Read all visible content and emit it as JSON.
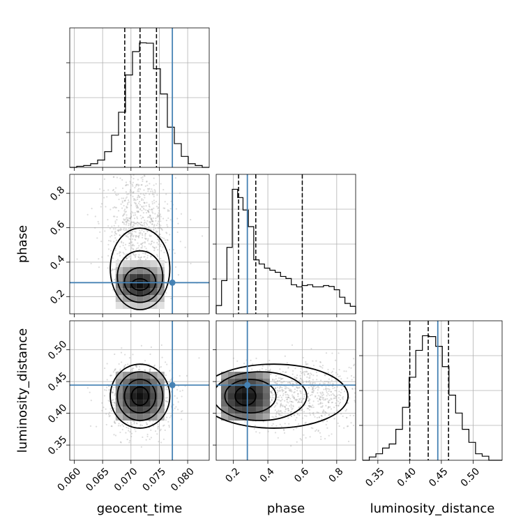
{
  "chart_data": {
    "type": "corner",
    "parameters": [
      "geocent_time",
      "phase",
      "luminosity_distance"
    ],
    "truth_color": "#4682b4",
    "truths": {
      "geocent_time": 0.0773,
      "phase": 0.281,
      "luminosity_distance": 0.4444
    },
    "axes": {
      "geocent_time": {
        "range": [
          0.0592,
          0.0838
        ],
        "ticks": [
          0.06,
          0.065,
          0.07,
          0.075,
          0.08
        ],
        "tick_labels": [
          "0.060",
          "0.065",
          "0.070",
          "0.075",
          "0.080"
        ]
      },
      "phase": {
        "range": [
          0.1,
          0.91
        ],
        "ticks": [
          0.2,
          0.4,
          0.6,
          0.8
        ],
        "tick_labels": [
          "0.2",
          "0.4",
          "0.6",
          "0.8"
        ]
      },
      "luminosity_distance": {
        "range": [
          0.326,
          0.5457
        ],
        "ticks": [
          0.35,
          0.4,
          0.45,
          0.5
        ],
        "tick_labels": [
          "0.35",
          "0.40",
          "0.45",
          "0.50"
        ]
      }
    },
    "histograms": {
      "geocent_time": {
        "quantiles": [
          0.0689,
          0.0716,
          0.0745
        ],
        "counts": [
          0,
          0.3,
          0.5,
          1.0,
          2.0,
          4.3,
          8.8,
          15.1,
          25.3,
          31.7,
          34.1,
          34.0,
          27.0,
          20.1,
          11.0,
          6.5,
          3.0,
          1.0,
          0.5,
          0
        ]
      },
      "phase": {
        "quantiles": [
          0.23,
          0.33,
          0.6
        ],
        "counts": [
          2,
          8,
          16,
          30,
          28,
          25,
          21,
          13,
          12,
          11,
          10.5,
          10,
          9,
          8.5,
          7,
          6.5,
          6.8,
          7,
          6.5,
          6.5,
          6.8,
          6.6,
          5.8,
          4,
          2.5,
          1.8
        ]
      },
      "luminosity_distance": {
        "quantiles": [
          0.4003,
          0.4293,
          0.4613
        ],
        "counts": [
          0,
          0.4,
          0.8,
          1.5,
          2.0,
          3.8,
          6.5,
          10.2,
          13.5,
          15.3,
          15.2,
          14.0,
          11.5,
          8.0,
          5.8,
          3.8,
          2.2,
          0.8,
          0.5,
          0,
          0
        ]
      }
    },
    "pairs": [
      {
        "x": "geocent_time",
        "y": "phase",
        "peak": [
          0.0716,
          0.27
        ],
        "sigma": [
          0.0025,
          0.055
        ]
      },
      {
        "x": "geocent_time",
        "y": "luminosity_distance",
        "peak": [
          0.0716,
          0.427
        ],
        "sigma": [
          0.0025,
          0.024
        ]
      },
      {
        "x": "phase",
        "y": "luminosity_distance",
        "peak": [
          0.27,
          0.427
        ],
        "sigma": [
          0.1,
          0.024
        ]
      }
    ]
  }
}
